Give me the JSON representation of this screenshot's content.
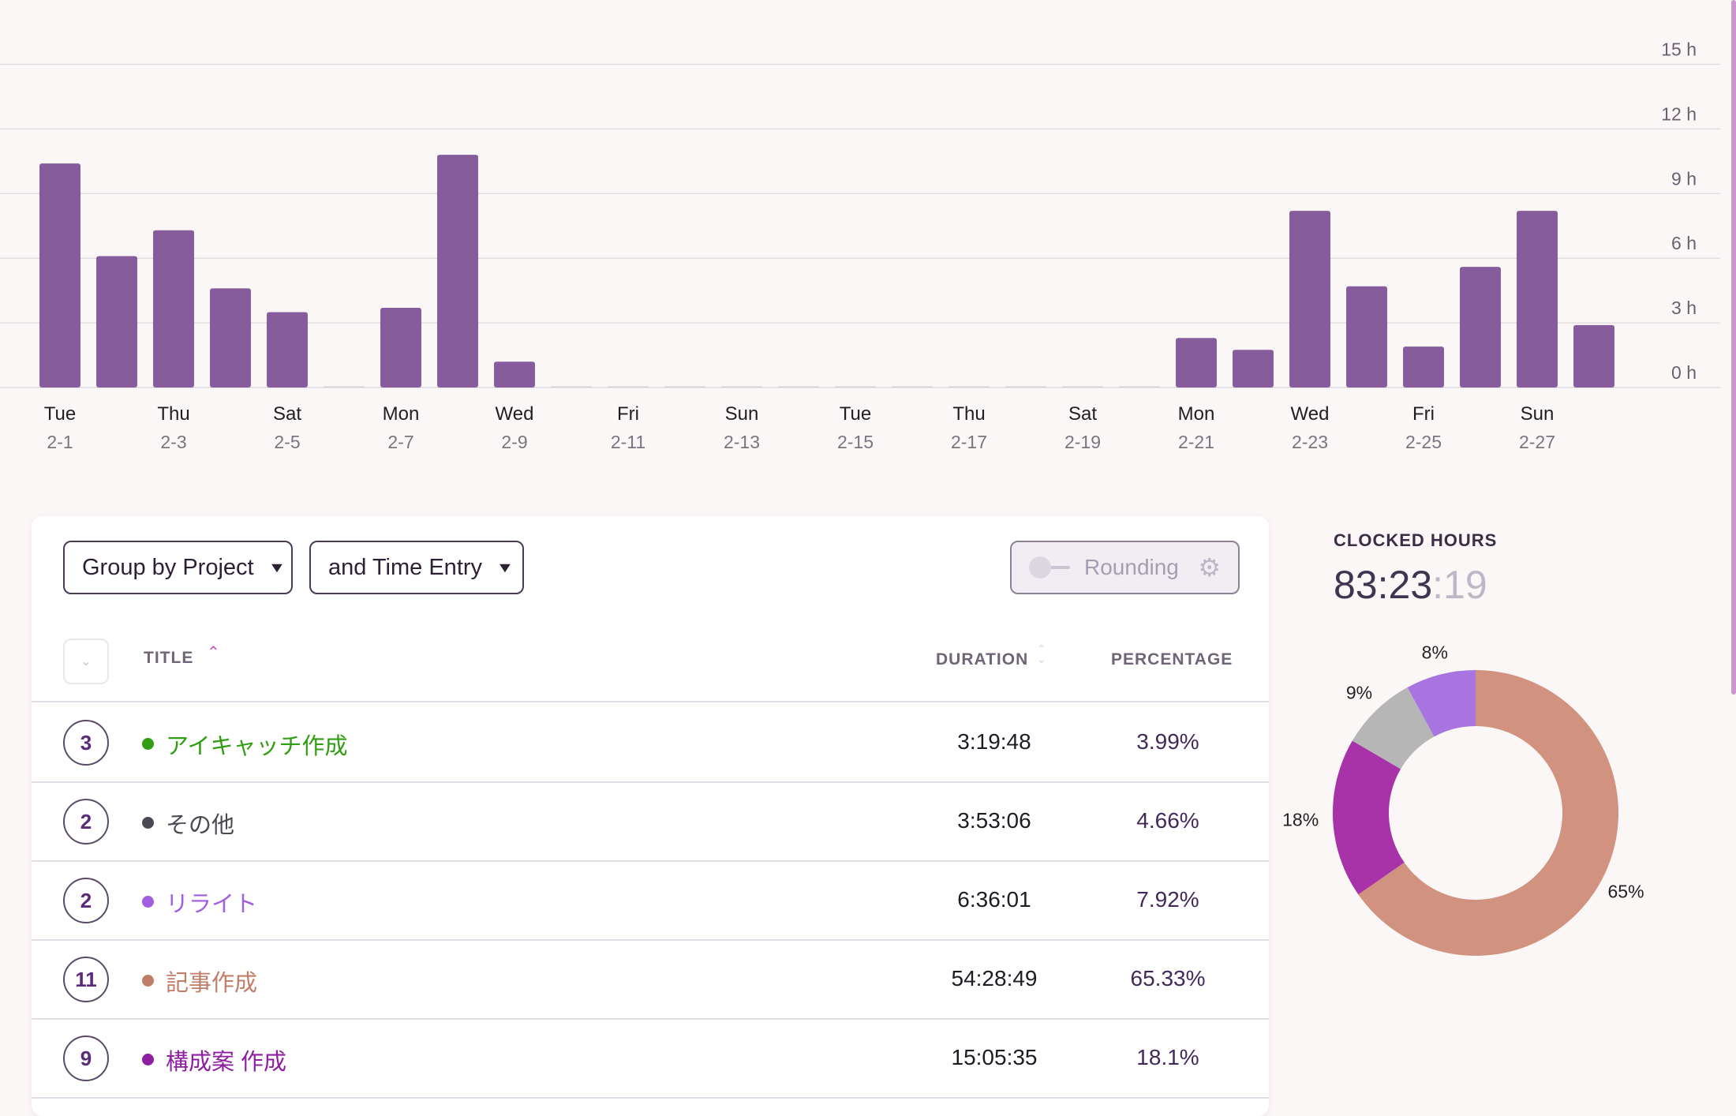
{
  "chart_data": {
    "type": "bar",
    "y_ticks": [
      "15 h",
      "12 h",
      "9 h",
      "6 h",
      "3 h",
      "0 h"
    ],
    "ylim": [
      0,
      15
    ],
    "grid": true,
    "series_color": "#875c9c",
    "values": [
      10.4,
      6.1,
      7.3,
      4.6,
      3.5,
      0,
      3.7,
      10.8,
      1.2,
      0,
      0,
      0,
      0,
      0,
      0,
      0,
      0,
      0,
      0,
      0,
      2.3,
      1.75,
      8.2,
      4.7,
      1.9,
      5.6,
      8.2,
      2.9
    ],
    "tick_days": [
      "Tue",
      "Thu",
      "Sat",
      "Mon",
      "Wed",
      "Fri",
      "Sun",
      "Tue",
      "Thu",
      "Sat",
      "Mon",
      "Wed",
      "Fri",
      "Sun"
    ],
    "tick_dates": [
      "2-1",
      "2-3",
      "2-5",
      "2-7",
      "2-9",
      "2-11",
      "2-13",
      "2-15",
      "2-17",
      "2-19",
      "2-21",
      "2-23",
      "2-25",
      "2-27"
    ]
  },
  "controls": {
    "group_by_label": "Group by Project",
    "sub_group_label": "and Time Entry",
    "rounding_label": "Rounding"
  },
  "table": {
    "headers": {
      "title": "TITLE",
      "duration": "DURATION",
      "percentage": "PERCENTAGE"
    },
    "rows": [
      {
        "count": "3",
        "title": "アイキャッチ作成",
        "duration": "3:19:48",
        "percentage": "3.99%",
        "color": "#2f9e12"
      },
      {
        "count": "2",
        "title": "その他",
        "duration": "3:53:06",
        "percentage": "4.66%",
        "color": "#4a4a55"
      },
      {
        "count": "2",
        "title": "リライト",
        "duration": "6:36:01",
        "percentage": "7.92%",
        "color": "#a15ee0"
      },
      {
        "count": "11",
        "title": "記事作成",
        "duration": "54:28:49",
        "percentage": "65.33%",
        "color": "#c07e68"
      },
      {
        "count": "9",
        "title": "構成案 作成",
        "duration": "15:05:35",
        "percentage": "18.1%",
        "color": "#8d1fa0"
      }
    ]
  },
  "summary": {
    "label": "CLOCKED HOURS",
    "hours_minutes": "83:23",
    "seconds": ":19"
  },
  "donut_chart": {
    "type": "pie",
    "slices": [
      {
        "label": "65%",
        "value": 65.33,
        "color": "#d19380"
      },
      {
        "label": "18%",
        "value": 18.1,
        "color": "#a832a8"
      },
      {
        "label": "9%",
        "value": 8.65,
        "color": "#b6b6b6"
      },
      {
        "label": "8%",
        "value": 7.92,
        "color": "#a874e0"
      }
    ]
  }
}
